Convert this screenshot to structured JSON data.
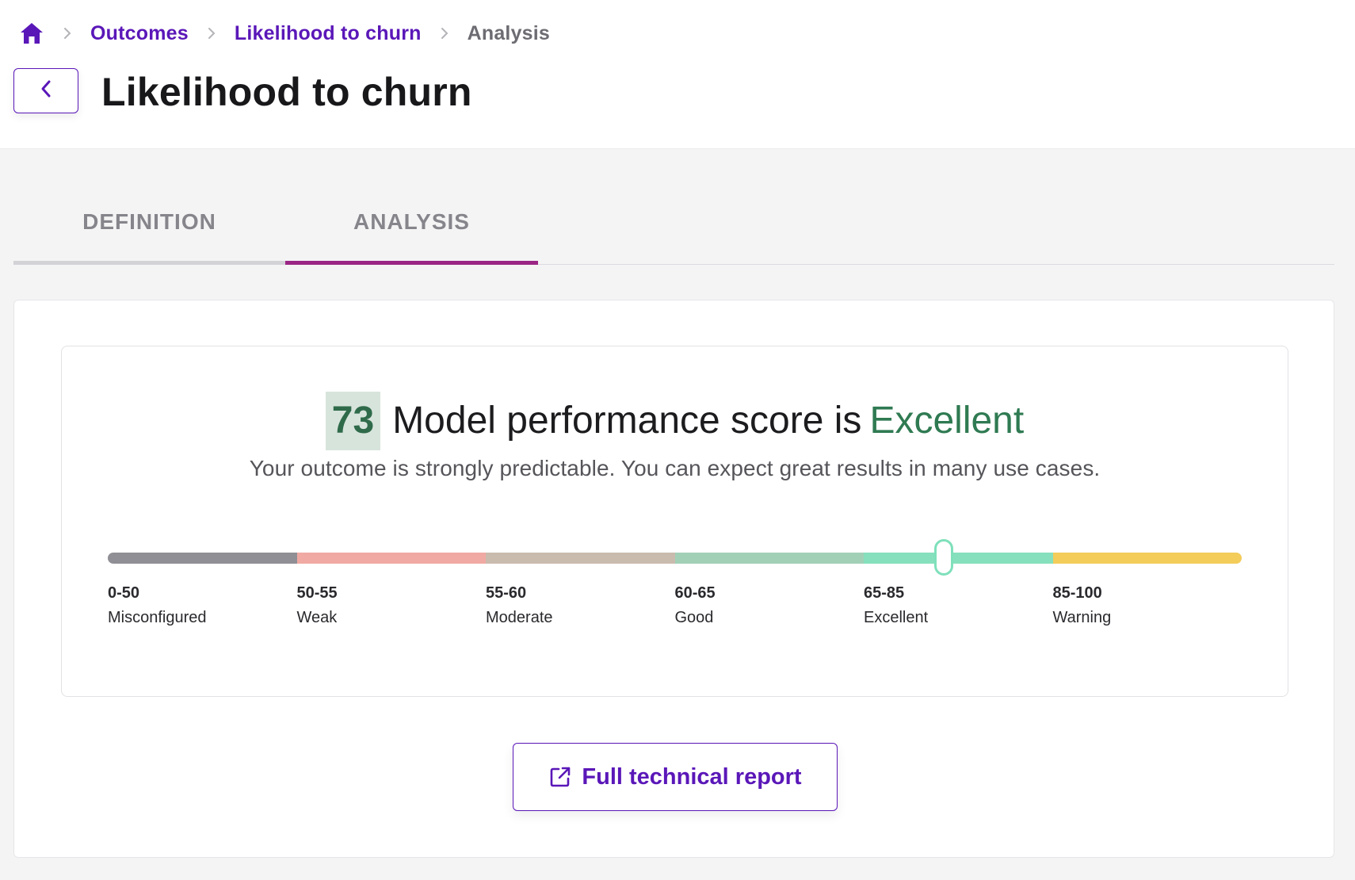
{
  "breadcrumb": {
    "home_icon": "home-icon",
    "items": [
      "Outcomes",
      "Likelihood to churn",
      "Analysis"
    ]
  },
  "header": {
    "back_icon": "chevron-left-icon",
    "title": "Likelihood to churn"
  },
  "tabs": [
    {
      "label": "DEFINITION",
      "active": false
    },
    {
      "label": "ANALYSIS",
      "active": true
    }
  ],
  "score": {
    "value": "73",
    "text": "Model performance score is",
    "rating": "Excellent",
    "description": "Your outcome is strongly predictable. You can expect great results in many use cases."
  },
  "scale": {
    "min": 0,
    "max": 100,
    "marker_fraction": 0.737,
    "segments": [
      {
        "range": "0-50",
        "name": "Misconfigured",
        "color": "#908f95"
      },
      {
        "range": "50-55",
        "name": "Weak",
        "color": "#f0aaa3"
      },
      {
        "range": "55-60",
        "name": "Moderate",
        "color": "#c9bbae"
      },
      {
        "range": "60-65",
        "name": "Good",
        "color": "#a2d0b7"
      },
      {
        "range": "65-85",
        "name": "Excellent",
        "color": "#86e0bd"
      },
      {
        "range": "85-100",
        "name": "Warning",
        "color": "#f3cc5a"
      }
    ]
  },
  "report_button": {
    "label": "Full technical report",
    "icon": "external-link-icon"
  },
  "colors": {
    "brand": "#5a17b8",
    "tab_active": "#9b2585",
    "score_green": "#2f7a52",
    "marker": "#7ee0bb"
  }
}
